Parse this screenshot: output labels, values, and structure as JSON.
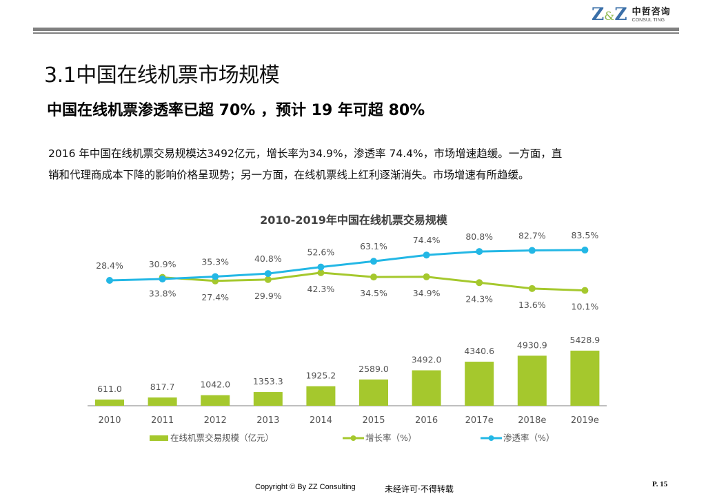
{
  "header": {
    "logo_mark": "Z&Z",
    "logo_cn": "中哲咨询",
    "logo_en": "CONSUL TING"
  },
  "section_title": "3.1中国在线机票市场规模",
  "headline": "中国在线机票渗透率已超 70% ，预计 19 年可超 80%",
  "body": {
    "line1": "2016 年中国在线机票交易规模达3492亿元，增长率为34.9%，渗透率 74.4%，市场增速趋缓。一方面，直",
    "line2": "销和代理商成本下降的影响价格呈现势；另一方面，在线机票线上红利逐渐消失。市场增速有所趋缓。"
  },
  "colors": {
    "bar": "#a5c82d",
    "growth_line": "#a5c82d",
    "penetration_line": "#23b7e5",
    "axis": "#999999",
    "label": "#555555",
    "title": "#404040"
  },
  "chart_data": {
    "type": "bar+line",
    "title": "2010-2019年中国在线机票交易规模",
    "categories": [
      "2010",
      "2011",
      "2012",
      "2013",
      "2014",
      "2015",
      "2016",
      "2017e",
      "2018e",
      "2019e"
    ],
    "series": [
      {
        "name": "在线机票交易规模（亿元）",
        "type": "bar",
        "values": [
          611.0,
          817.7,
          1042.0,
          1353.3,
          1925.2,
          2589.0,
          3492.0,
          4340.6,
          4930.9,
          5428.9
        ],
        "labels": [
          "611.0",
          "817.7",
          "1042.0",
          "1353.3",
          "1925.2",
          "2589.0",
          "3492.0",
          "4340.6",
          "4930.9",
          "5428.9"
        ]
      },
      {
        "name": "增长率（%）",
        "type": "line",
        "values": [
          null,
          33.8,
          27.4,
          29.9,
          42.3,
          34.5,
          34.9,
          24.3,
          13.6,
          10.1
        ],
        "labels": [
          null,
          "33.8%",
          "27.4%",
          "29.9%",
          "42.3%",
          "34.5%",
          "34.9%",
          "24.3%",
          "13.6%",
          "10.1%"
        ]
      },
      {
        "name": "渗透率（%）",
        "type": "line",
        "values": [
          28.4,
          30.9,
          35.3,
          40.8,
          52.6,
          63.1,
          74.4,
          80.8,
          82.7,
          83.5
        ],
        "labels": [
          "28.4%",
          "30.9%",
          "35.3%",
          "40.8%",
          "52.6%",
          "63.1%",
          "74.4%",
          "80.8%",
          "82.7%",
          "83.5%"
        ]
      }
    ],
    "xlabel": "",
    "ylabel": "",
    "grid": false,
    "legend_position": "bottom"
  },
  "footer": {
    "copyright": "Copyright © By  ZZ Consulting",
    "notice": "未经许可·不得转载",
    "page": "P. 15"
  }
}
